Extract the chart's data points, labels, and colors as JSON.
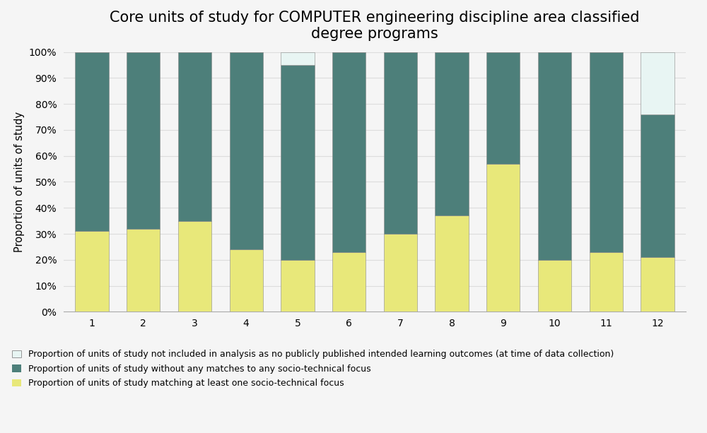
{
  "categories": [
    1,
    2,
    3,
    4,
    5,
    6,
    7,
    8,
    9,
    10,
    11,
    12
  ],
  "yellow": [
    31,
    32,
    35,
    24,
    20,
    23,
    30,
    37,
    57,
    20,
    23,
    21
  ],
  "teal": [
    69,
    68,
    65,
    76,
    75,
    77,
    70,
    63,
    43,
    80,
    77,
    55
  ],
  "light": [
    0,
    0,
    0,
    0,
    5,
    0,
    0,
    0,
    0,
    0,
    0,
    24
  ],
  "color_yellow": "#e8e87a",
  "color_teal": "#4d7f7a",
  "color_light": "#e8f5f3",
  "title": "Core units of study for COMPUTER engineering discipline area classified\ndegree programs",
  "ylabel": "Proportion of units of study",
  "legend_light": "Proportion of units of study not included in analysis as no publicly published intended learning outcomes (at time of data collection)",
  "legend_teal": "Proportion of units of study without any matches to any socio-technical focus",
  "legend_yellow": "Proportion of units of study matching at least one socio-technical focus",
  "ylim": [
    0,
    100
  ],
  "yticks": [
    0,
    10,
    20,
    30,
    40,
    50,
    60,
    70,
    80,
    90,
    100
  ],
  "ytick_labels": [
    "0%",
    "10%",
    "20%",
    "30%",
    "40%",
    "50%",
    "60%",
    "70%",
    "80%",
    "90%",
    "100%"
  ],
  "title_fontsize": 15,
  "axis_fontsize": 10.5,
  "tick_fontsize": 10,
  "legend_fontsize": 9,
  "bar_width": 0.65,
  "background_color": "#f5f5f5",
  "plot_bg_color": "#f5f5f5",
  "grid_color": "#dddddd",
  "bar_edge_color": "#888888",
  "bar_edge_width": 0.4
}
